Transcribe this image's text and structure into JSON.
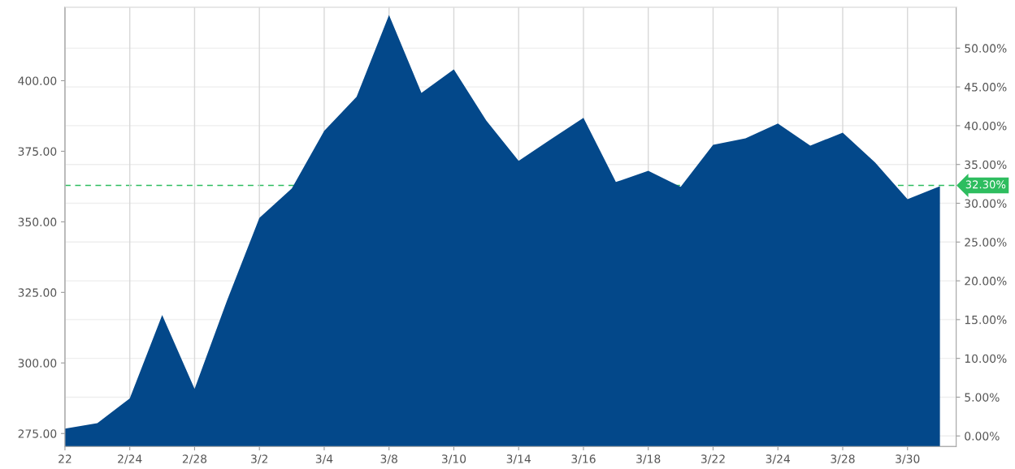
{
  "chart_data": {
    "type": "area",
    "categories": [
      "22",
      null,
      "2/24",
      null,
      "2/28",
      null,
      "3/2",
      null,
      "3/4",
      null,
      "3/8",
      null,
      "3/10",
      null,
      "3/14",
      null,
      "3/16",
      null,
      "3/18",
      null,
      "3/22",
      null,
      "3/24",
      null,
      "3/28",
      null,
      "3/30",
      null
    ],
    "series": [
      {
        "color": "#03488a",
        "values": [
          276.7,
          278.7,
          287.4,
          317.0,
          290.8,
          322.1,
          351.4,
          361.8,
          382.2,
          394.3,
          423.3,
          395.7,
          404.0,
          385.9,
          371.6,
          379.3,
          386.8,
          364.1,
          368.1,
          362.4,
          377.3,
          379.6,
          384.8,
          377.0,
          381.6,
          371.0,
          358.0,
          362.6
        ]
      }
    ],
    "ylim": [
      270.4,
      426.1
    ],
    "yticks": [
      {
        "value": 275,
        "label": "275.00"
      },
      {
        "value": 300,
        "label": "300.00"
      },
      {
        "value": 325,
        "label": "325.00"
      },
      {
        "value": 350,
        "label": "350.00"
      },
      {
        "value": 375,
        "label": "375.00"
      },
      {
        "value": 400,
        "label": "400.00"
      }
    ],
    "y2lim": [
      -1.36,
      55.3
    ],
    "y2ticks": [
      {
        "value": 0,
        "label": "0.00%"
      },
      {
        "value": 5,
        "label": "5.00%"
      },
      {
        "value": 10,
        "label": "10.00%"
      },
      {
        "value": 15,
        "label": "15.00%"
      },
      {
        "value": 20,
        "label": "20.00%"
      },
      {
        "value": 25,
        "label": "25.00%"
      },
      {
        "value": 30,
        "label": "30.00%"
      },
      {
        "value": 35,
        "label": "35.00%"
      },
      {
        "value": 40,
        "label": "40.00%"
      },
      {
        "value": 45,
        "label": "45.00%"
      },
      {
        "value": 50,
        "label": "50.00%"
      }
    ],
    "ref_lines": [
      {
        "axis": "y2",
        "value": 32.3,
        "label": "32.30%",
        "color": "#2ebd5f",
        "line_style": "dashed"
      }
    ],
    "grid": true,
    "legend": false
  }
}
